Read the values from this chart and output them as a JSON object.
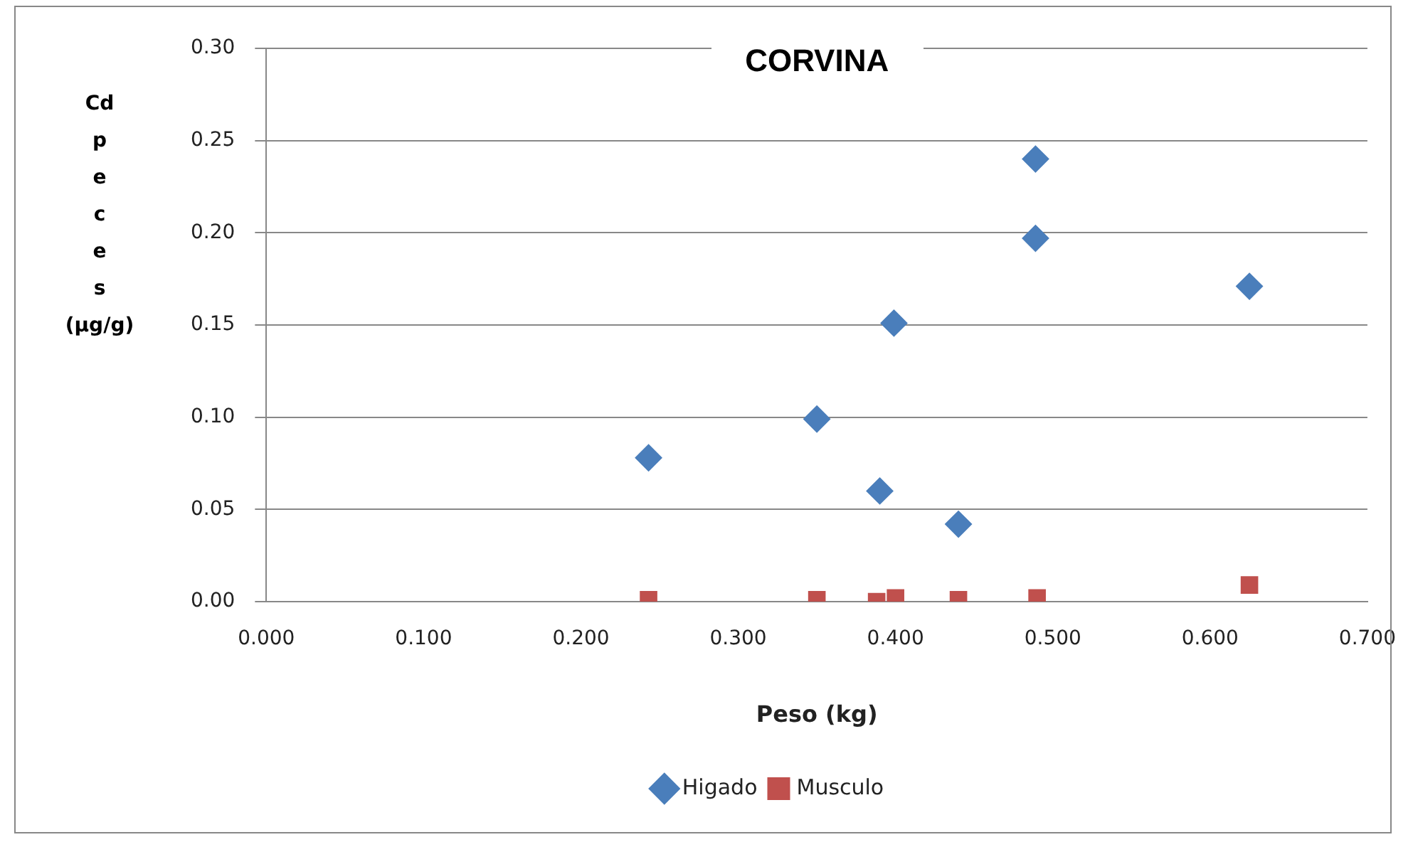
{
  "chart_data": {
    "type": "scatter",
    "title": "CORVINA",
    "xlabel": "Peso (kg)",
    "ylabel": "Cd peces (µg/g)",
    "xlim": [
      0,
      0.7
    ],
    "xticks": [
      {
        "value": 0,
        "label": "0.000"
      },
      {
        "value": 0.1,
        "label": "0.100"
      },
      {
        "value": 0.2,
        "label": "0.200"
      },
      {
        "value": 0.3,
        "label": "0.300"
      },
      {
        "value": 0.4,
        "label": "0.400"
      },
      {
        "value": 0.5,
        "label": "0.500"
      },
      {
        "value": 0.6,
        "label": "0.600"
      },
      {
        "value": 0.7,
        "label": "0.700"
      }
    ],
    "ylim": [
      0,
      0.3
    ],
    "yticks": [
      {
        "value": 0,
        "label": "0.00"
      },
      {
        "value": 0.05,
        "label": "0.05"
      },
      {
        "value": 0.1,
        "label": "0.10"
      },
      {
        "value": 0.15,
        "label": "0.15"
      },
      {
        "value": 0.2,
        "label": "0.20"
      },
      {
        "value": 0.25,
        "label": "0.25"
      },
      {
        "value": 0.3,
        "label": "0.30"
      }
    ],
    "grid": "y",
    "legend": "bottom",
    "series": [
      {
        "name": "Higado",
        "color": "#4a7ebb",
        "marker": "diamond",
        "x": [
          0.243,
          0.35,
          0.39,
          0.399,
          0.44,
          0.489,
          0.489,
          0.625
        ],
        "values": [
          0.078,
          0.099,
          0.06,
          0.151,
          0.042,
          0.24,
          0.197,
          0.171
        ]
      },
      {
        "name": "Musculo",
        "color": "#c0504d",
        "marker": "square",
        "x": [
          0.243,
          0.35,
          0.388,
          0.4,
          0.44,
          0.49,
          0.625
        ],
        "values": [
          0.001,
          0.001,
          0,
          0.002,
          0.001,
          0.002,
          0.009
        ]
      }
    ]
  }
}
